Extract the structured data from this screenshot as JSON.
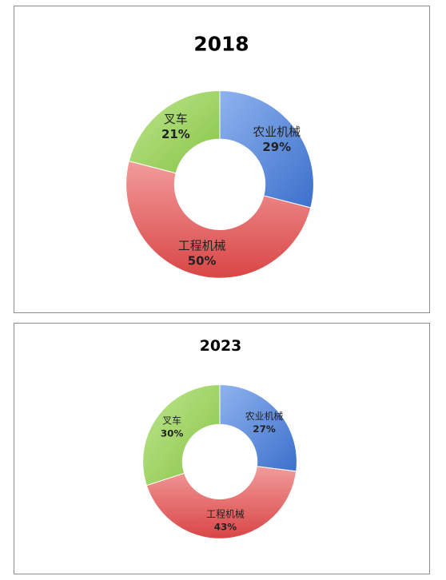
{
  "chart_data": [
    {
      "type": "pie",
      "variant": "donut",
      "title": "2018",
      "categories": [
        "农业机械",
        "工程机械",
        "叉车"
      ],
      "values": [
        29,
        50,
        21
      ],
      "value_labels": [
        "29%",
        "50%",
        "21%"
      ],
      "colors": [
        "#4a7fd6",
        "#e45c5c",
        "#8fcc4f"
      ],
      "legend": false
    },
    {
      "type": "pie",
      "variant": "donut",
      "title": "2023",
      "categories": [
        "农业机械",
        "工程机械",
        "叉车"
      ],
      "values": [
        27,
        43,
        30
      ],
      "value_labels": [
        "27%",
        "43%",
        "30%"
      ],
      "colors": [
        "#4a7fd6",
        "#e45c5c",
        "#8fcc4f"
      ],
      "legend": false
    }
  ]
}
